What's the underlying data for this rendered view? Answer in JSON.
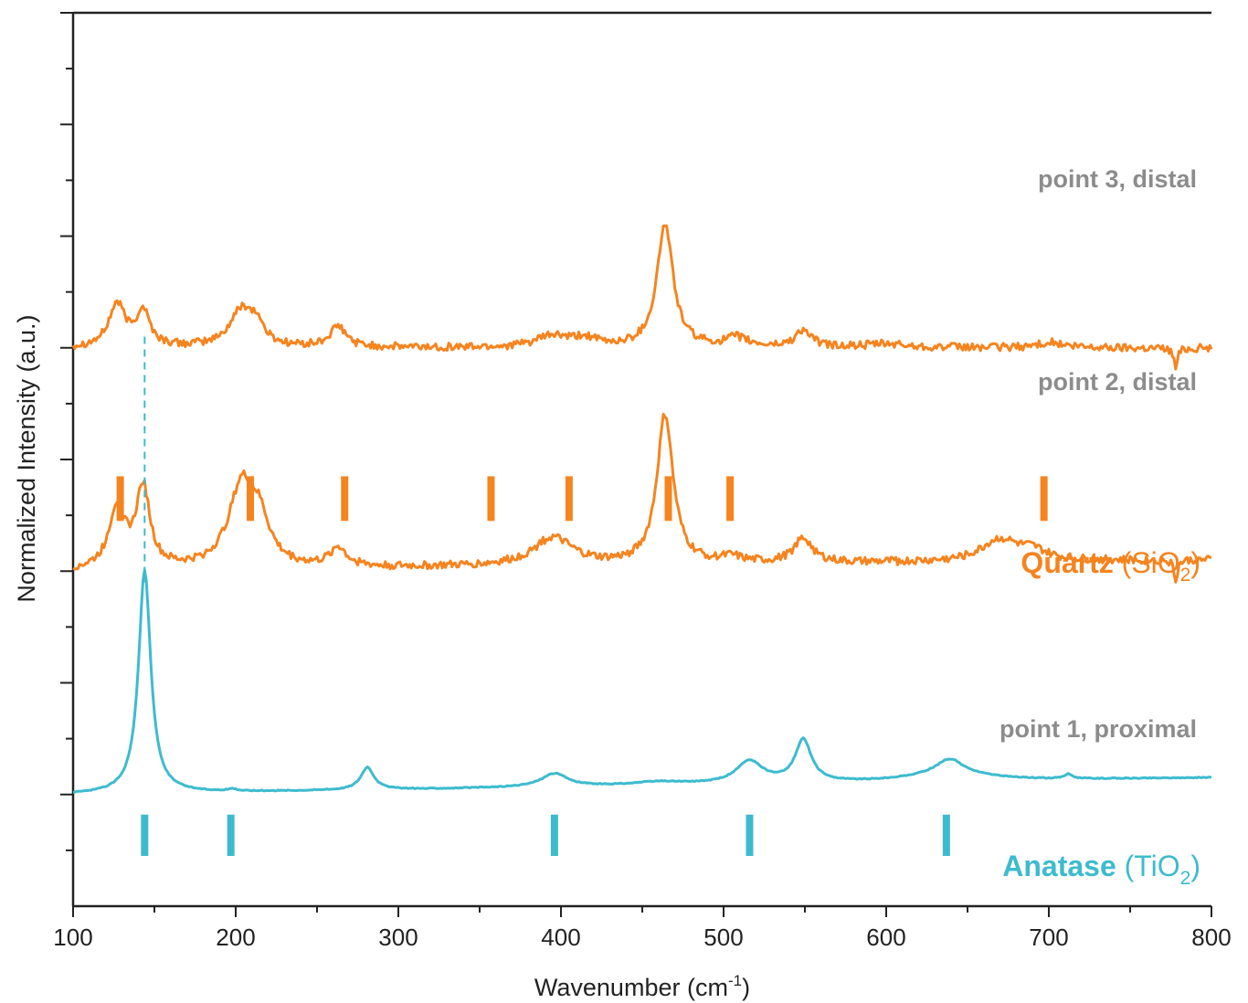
{
  "chart_data": {
    "type": "line",
    "xlabel": "Wavenumber (cm",
    "xlabel_sup": "-1",
    "xlabel_end": ")",
    "ylabel": "Normalized Intensity (a.u.)",
    "xlim": [
      100,
      800
    ],
    "x_ticks": [
      100,
      200,
      300,
      400,
      500,
      600,
      700,
      800
    ],
    "y_tick_labels": "none",
    "grid": false,
    "legend": "none",
    "colors": {
      "quartz": "#f5841f",
      "anatase": "#3dbbce",
      "label_gray": "#8c8c8c",
      "axis": "#222222"
    },
    "series": [
      {
        "name": "point 3, distal",
        "color": "#f5841f",
        "baseline": 4.0,
        "noise": 0.035,
        "slope": 0,
        "peaks": [
          [
            127,
            0.38,
            6
          ],
          [
            143,
            0.32,
            5
          ],
          [
            204,
            0.34,
            9
          ],
          [
            213,
            0.14,
            5
          ],
          [
            263,
            0.18,
            6
          ],
          [
            395,
            0.1,
            12
          ],
          [
            415,
            0.07,
            8
          ],
          [
            464,
            1.1,
            6
          ],
          [
            508,
            0.08,
            8
          ],
          [
            549,
            0.15,
            6
          ],
          [
            600,
            0.03,
            15
          ],
          [
            700,
            0.05,
            8
          ],
          [
            778,
            -0.18,
            1.4
          ]
        ]
      },
      {
        "name": "point 2, distal",
        "color": "#f5841f",
        "baseline": 2.0,
        "noise": 0.035,
        "slope": 0.1,
        "peaks": [
          [
            127,
            0.55,
            6
          ],
          [
            143,
            0.72,
            5
          ],
          [
            204,
            0.75,
            10
          ],
          [
            215,
            0.3,
            7
          ],
          [
            263,
            0.17,
            6
          ],
          [
            395,
            0.25,
            15
          ],
          [
            464,
            1.34,
            6
          ],
          [
            505,
            0.05,
            8
          ],
          [
            549,
            0.22,
            7
          ],
          [
            670,
            0.2,
            14
          ],
          [
            690,
            0.08,
            10
          ],
          [
            778,
            -0.18,
            1.4
          ]
        ]
      },
      {
        "name": "point 1, proximal",
        "color": "#3dbbce",
        "baseline": 0.0,
        "noise": 0.004,
        "slope": 0.15,
        "peaks": [
          [
            144,
            2.0,
            4.5
          ],
          [
            198,
            0.02,
            3
          ],
          [
            281,
            0.2,
            5
          ],
          [
            396,
            0.12,
            10
          ],
          [
            460,
            0.03,
            20
          ],
          [
            516,
            0.2,
            10
          ],
          [
            549,
            0.38,
            6
          ],
          [
            639,
            0.13,
            10
          ],
          [
            639,
            0.07,
            30
          ],
          [
            712,
            0.04,
            3
          ]
        ]
      }
    ],
    "series_label_text": [
      "point 3, distal",
      "point 2, distal",
      "point 1, proximal"
    ],
    "reference_markers": [
      {
        "name": "Quartz",
        "formula_base": "(SiO",
        "formula_sub": "2",
        "formula_close": ")",
        "color": "#f5841f",
        "positions": [
          129,
          209,
          267,
          357,
          405,
          466,
          504,
          697
        ]
      },
      {
        "name": "Anatase",
        "formula_base": "(TiO",
        "formula_sub": "2",
        "formula_close": ")",
        "color": "#3dbbce",
        "positions": [
          144,
          197,
          396,
          516,
          637
        ]
      }
    ],
    "guide_line_x": 144
  }
}
